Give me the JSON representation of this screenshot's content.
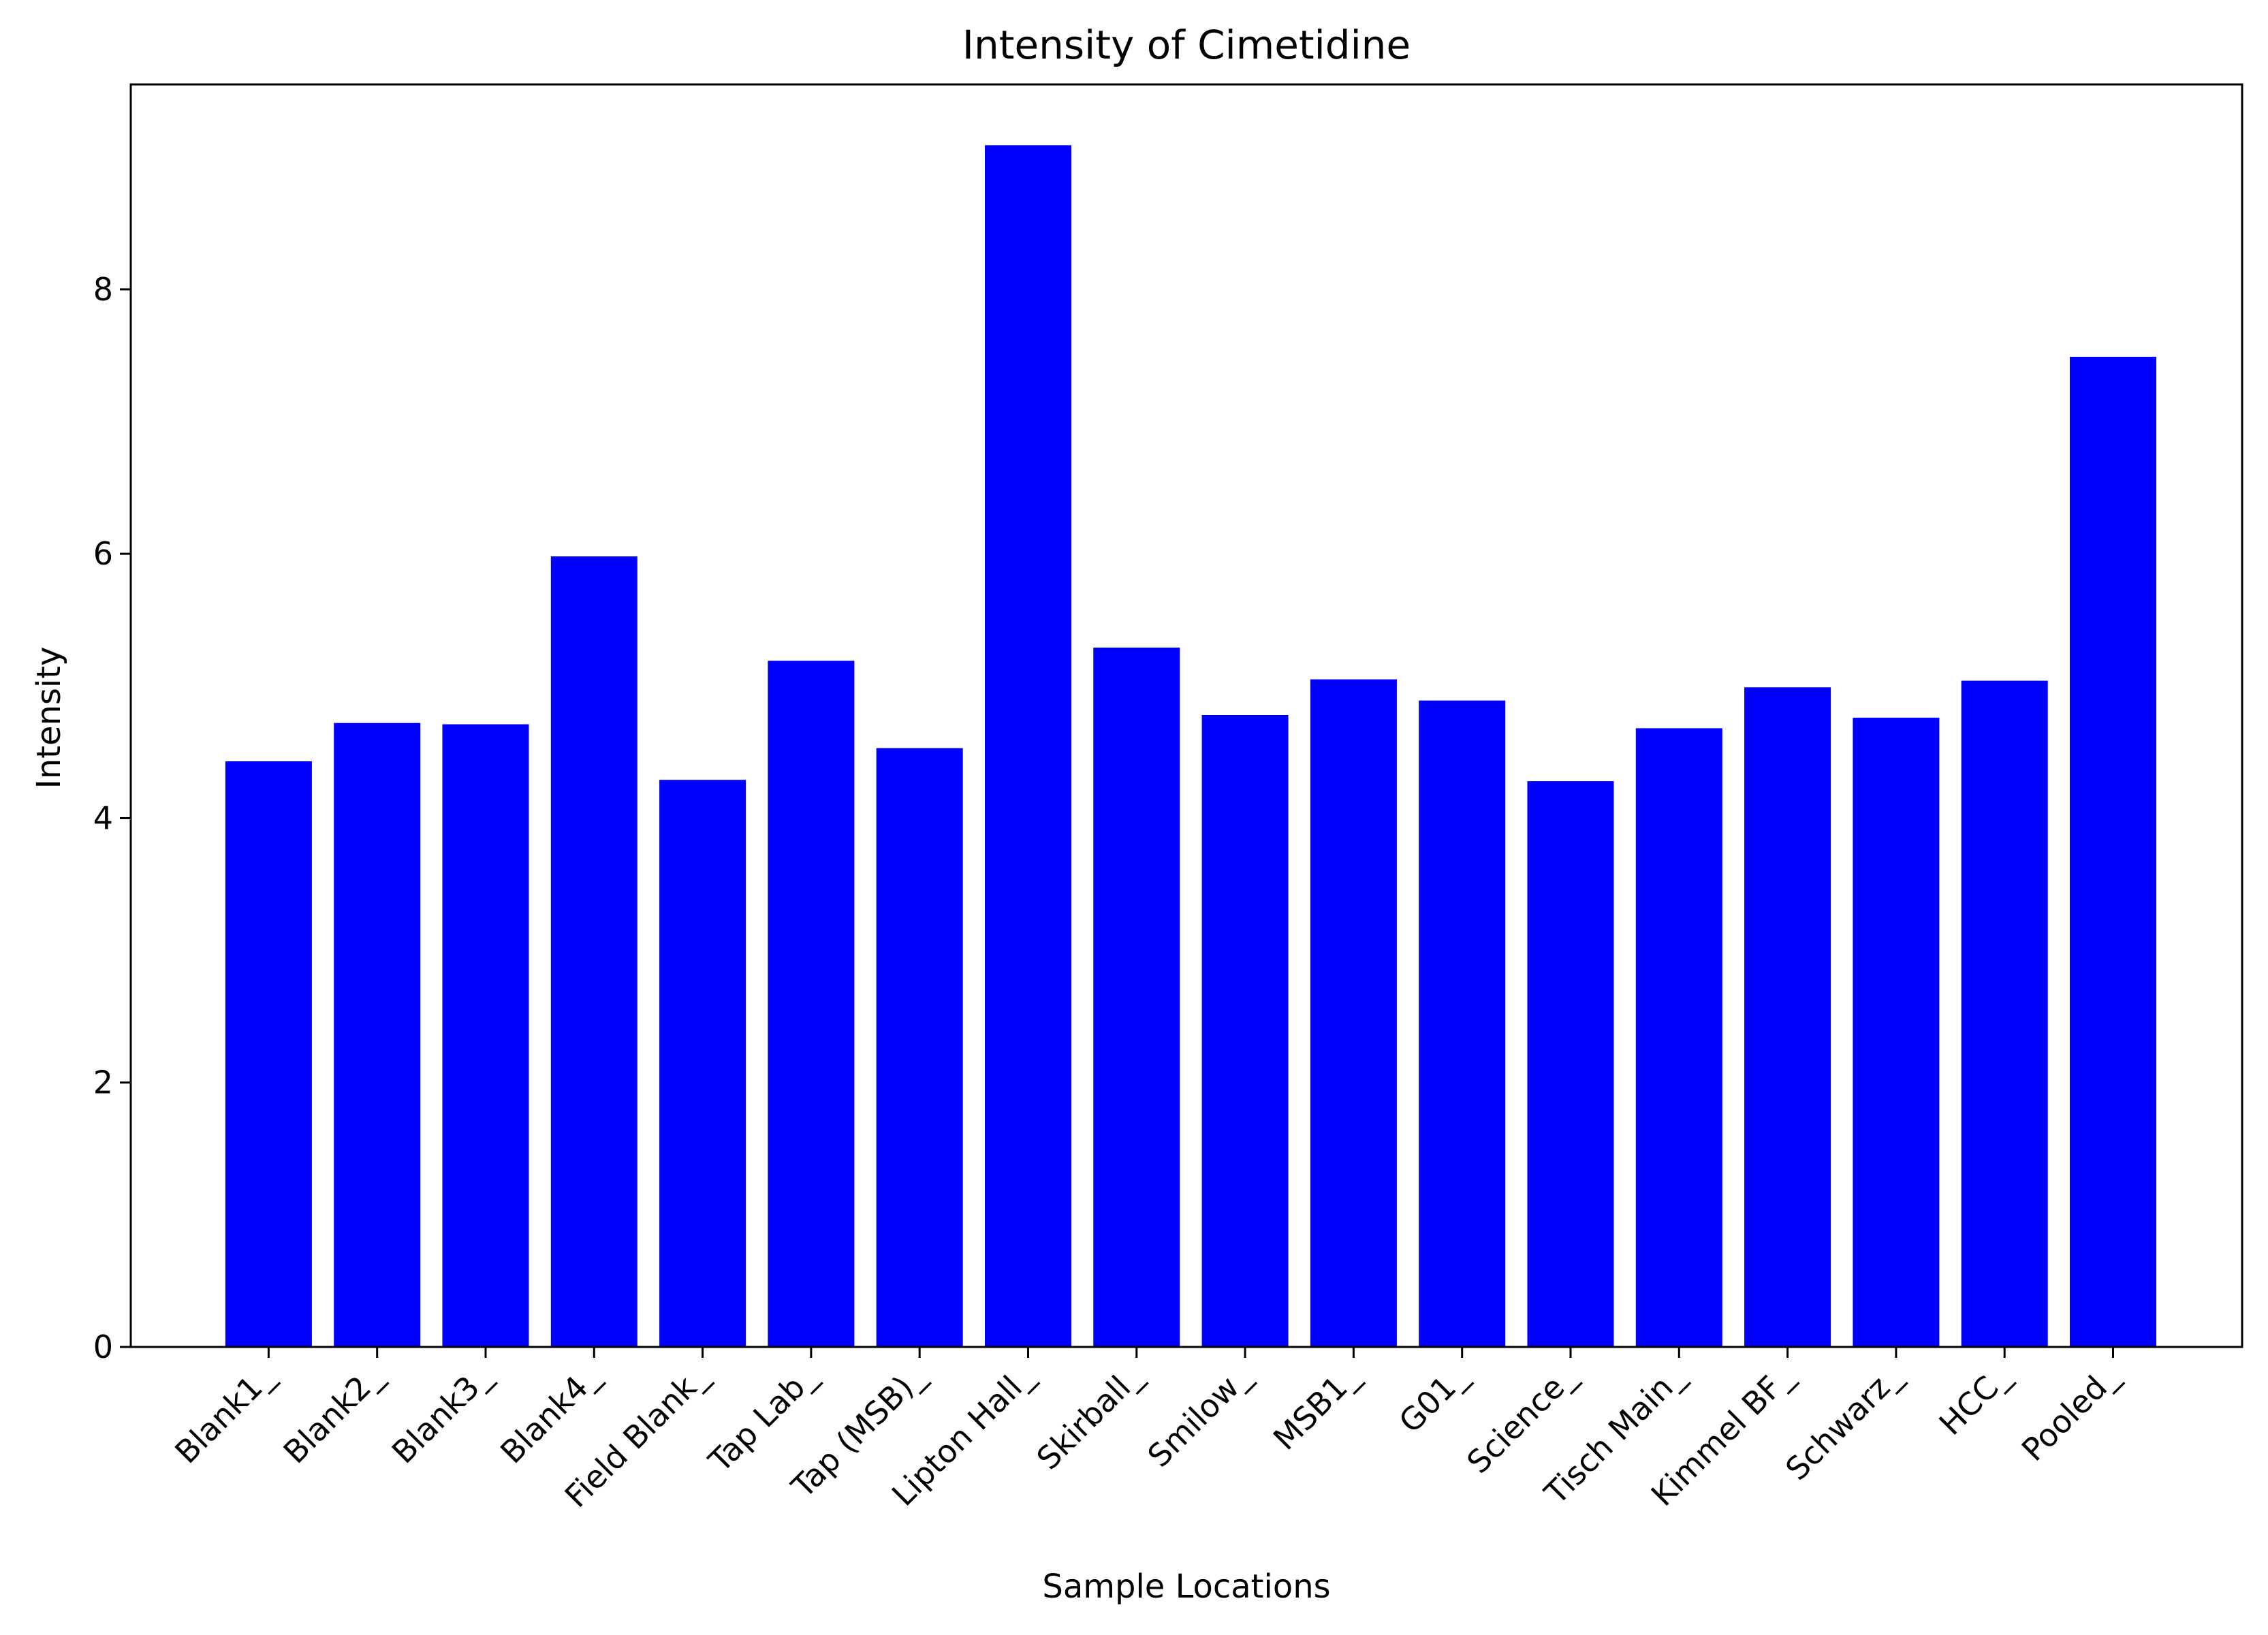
{
  "chart_data": {
    "type": "bar",
    "title": "Intensity of Cimetidine",
    "xlabel": "Sample Locations",
    "ylabel": "Intensity",
    "categories": [
      "Blank1_",
      "Blank2_",
      "Blank3_",
      "Blank4_",
      "Field Blank_",
      "Tap Lab_",
      "Tap (MSB)_",
      "Lipton Hall_",
      "Skirball_",
      "Smilow_",
      "MSB1_",
      "G01_",
      "Science_",
      "Tisch Main_",
      "Kimmel BF_",
      "Schwarz_",
      "HCC_",
      "Pooled_"
    ],
    "values": [
      4.43,
      4.72,
      4.71,
      5.98,
      4.29,
      5.19,
      4.53,
      9.09,
      5.29,
      4.78,
      5.05,
      4.89,
      4.28,
      4.68,
      4.99,
      4.76,
      5.04,
      7.49
    ],
    "ylim": [
      0,
      9.55
    ],
    "yticks": [
      "0",
      "2",
      "4",
      "6",
      "8"
    ],
    "ytick_values": [
      0,
      2,
      4,
      6,
      8
    ],
    "bar_color": "#0000ff",
    "grid": false,
    "legend": "none"
  }
}
